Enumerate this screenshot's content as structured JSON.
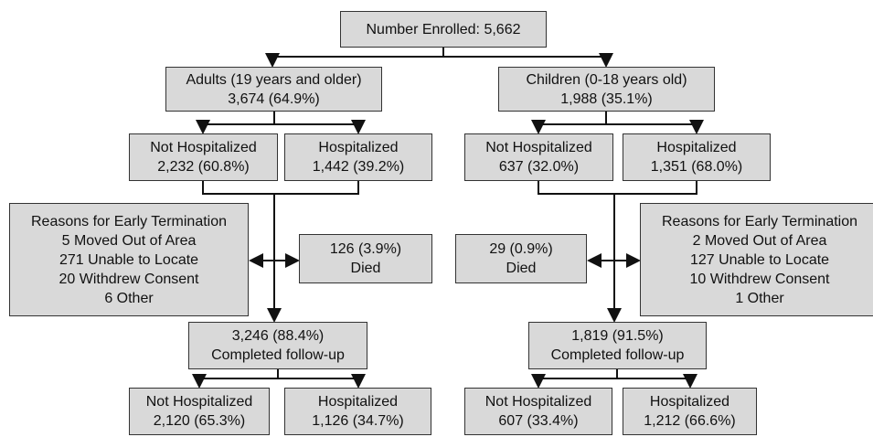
{
  "nodes": [
    {
      "lines": [
        "Number Enrolled: 5,662"
      ]
    },
    {
      "lines": [
        "Adults (19 years and older)",
        "3,674 (64.9%)"
      ]
    },
    {
      "lines": [
        "Children (0-18 years old)",
        "1,988 (35.1%)"
      ]
    },
    {
      "lines": [
        "Not Hospitalized",
        "2,232 (60.8%)"
      ]
    },
    {
      "lines": [
        "Hospitalized",
        "1,442 (39.2%)"
      ]
    },
    {
      "lines": [
        "Not Hospitalized",
        "637 (32.0%)"
      ]
    },
    {
      "lines": [
        "Hospitalized",
        "1,351 (68.0%)"
      ]
    },
    {
      "lines": [
        "Reasons for Early Termination",
        "5 Moved Out of Area",
        "271 Unable to Locate",
        "20 Withdrew Consent",
        "6 Other"
      ]
    },
    {
      "lines": [
        "126 (3.9%)",
        "Died"
      ]
    },
    {
      "lines": [
        "29 (0.9%)",
        "Died"
      ]
    },
    {
      "lines": [
        "Reasons for Early Termination",
        "2 Moved Out of Area",
        "127 Unable to Locate",
        "10 Withdrew Consent",
        "1 Other"
      ]
    },
    {
      "lines": [
        "3,246 (88.4%)",
        "Completed follow-up"
      ]
    },
    {
      "lines": [
        "1,819 (91.5%)",
        "Completed follow-up"
      ]
    },
    {
      "lines": [
        "Not Hospitalized",
        "2,120 (65.3%)"
      ]
    },
    {
      "lines": [
        "Hospitalized",
        "1,126 (34.7%)"
      ]
    },
    {
      "lines": [
        "Not Hospitalized",
        "607 (33.4%)"
      ]
    },
    {
      "lines": [
        "Hospitalized",
        "1,212 (66.6%)"
      ]
    }
  ]
}
